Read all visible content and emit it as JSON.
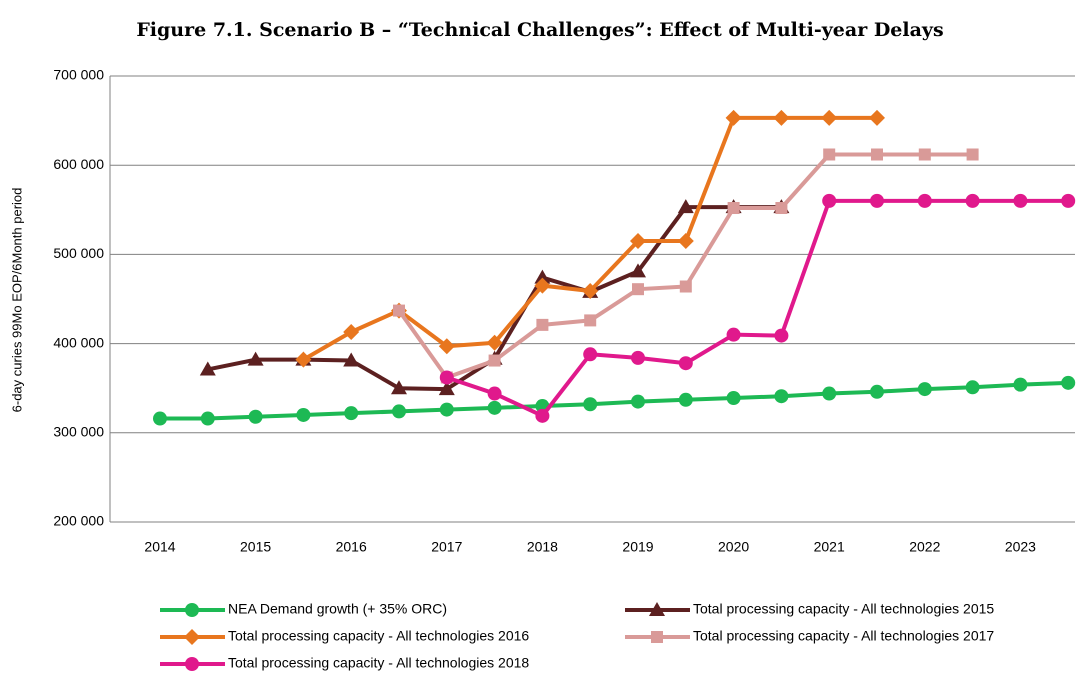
{
  "chart_data": {
    "type": "line",
    "title": "Figure 7.1. Scenario B – “Technical Challenges”: Effect of Multi-year Delays",
    "y_label": "6-day curies 99Mo EOP/6Month period",
    "categories": [
      "2014",
      null,
      "2015",
      null,
      "2016",
      null,
      "2017",
      null,
      "2018",
      null,
      "2019",
      null,
      "2020",
      null,
      "2021",
      null,
      "2022",
      null,
      "2023",
      null
    ],
    "ylim": [
      200000,
      700000
    ],
    "yticks": [
      {
        "value": 200000,
        "label": "200 000"
      },
      {
        "value": 300000,
        "label": "300 000"
      },
      {
        "value": 400000,
        "label": "400 000"
      },
      {
        "value": 500000,
        "label": "500 000"
      },
      {
        "value": 600000,
        "label": "600 000"
      },
      {
        "value": 700000,
        "label": "700 000"
      }
    ],
    "grid": true,
    "legend": "bottom",
    "series": [
      {
        "name": "NEA Demand growth (+ 35% ORC)",
        "color": "#1db954",
        "marker": "circle",
        "values": [
          316000,
          316000,
          318000,
          320000,
          322000,
          324000,
          326000,
          328000,
          330000,
          332000,
          335000,
          337000,
          339000,
          341000,
          344000,
          346000,
          349000,
          351000,
          354000,
          356000
        ]
      },
      {
        "name": "Total processing capacity - All technologies 2015",
        "color": "#5c2020",
        "marker": "triangle",
        "values": [
          null,
          371000,
          382000,
          382000,
          381000,
          350000,
          349000,
          383000,
          474000,
          458000,
          481000,
          553000,
          553000,
          553000,
          null,
          null,
          null,
          null,
          null,
          null
        ]
      },
      {
        "name": "Total processing capacity - All technologies 2016",
        "color": "#e8761e",
        "marker": "diamond",
        "values": [
          null,
          null,
          null,
          382000,
          413000,
          437000,
          397000,
          401000,
          465000,
          459000,
          515000,
          515000,
          653000,
          653000,
          653000,
          653000,
          null,
          null,
          null,
          null
        ]
      },
      {
        "name": "Total processing capacity - All technologies 2017",
        "color": "#d99a98",
        "marker": "square",
        "values": [
          null,
          null,
          null,
          null,
          null,
          437000,
          362000,
          381000,
          421000,
          426000,
          461000,
          464000,
          552000,
          552000,
          612000,
          612000,
          612000,
          612000,
          null,
          null
        ]
      },
      {
        "name": "Total processing capacity - All technologies 2018",
        "color": "#e0198c",
        "marker": "circle",
        "values": [
          null,
          null,
          null,
          null,
          null,
          null,
          362000,
          344000,
          319000,
          388000,
          384000,
          378000,
          410000,
          409000,
          560000,
          560000,
          560000,
          560000,
          560000,
          560000
        ]
      }
    ]
  }
}
